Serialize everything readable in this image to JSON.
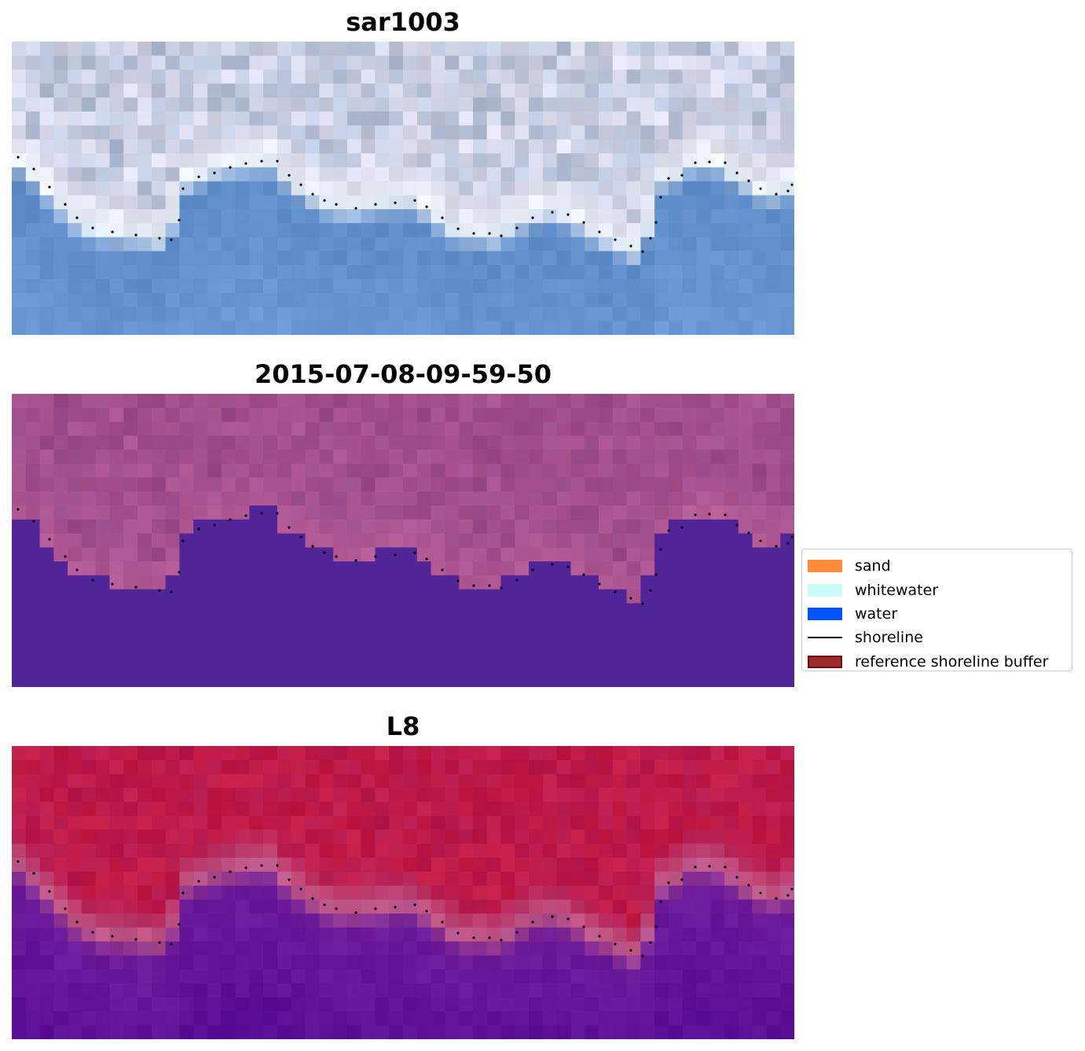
{
  "panels": [
    {
      "title": "sar1003",
      "colors": {
        "land_top": "#b4c0d8",
        "land_light": "#dcdcec",
        "transition": "#eaf1f8",
        "water": "#5b8ac8",
        "water_deep": "#6a9ad6"
      }
    },
    {
      "title": "2015-07-08-09-59-50",
      "colors": {
        "land_top": "#9a4b8a",
        "land_light": "#a8528f",
        "transition": "#b45a95",
        "water": "#512598",
        "water_deep": "#512598"
      }
    },
    {
      "title": "L8",
      "colors": {
        "land_top": "#c11a44",
        "land_light": "#b81a4e",
        "transition": "#c05b8a",
        "water": "#6e1c9a",
        "water_deep": "#5a0d96"
      }
    }
  ],
  "legend": {
    "items": [
      {
        "label": "sand",
        "color": "#ff8c3a",
        "kind": "patch"
      },
      {
        "label": "whitewater",
        "color": "#c8fdf8",
        "kind": "patch"
      },
      {
        "label": "water",
        "color": "#0055ff",
        "kind": "patch"
      },
      {
        "label": "shoreline",
        "color": "#000000",
        "kind": "line"
      },
      {
        "label": "reference shoreline buffer",
        "color": "#9c2a2a",
        "edge": "#6e0f0f",
        "kind": "patch"
      }
    ]
  }
}
